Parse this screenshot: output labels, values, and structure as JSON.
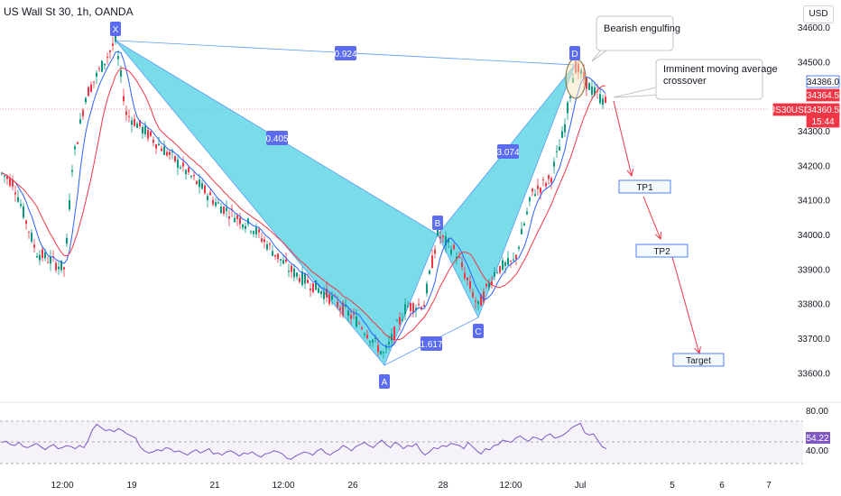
{
  "header": {
    "title": "US Wall St 30, 1h, OANDA",
    "currency": "USD"
  },
  "chart_data": {
    "type": "candlestick",
    "price_axis": {
      "ticks": [
        "34600.0",
        "34500.0",
        "34300.0",
        "34200.0",
        "34100.0",
        "34000.0",
        "33900.0",
        "33800.0",
        "33700.0",
        "33600.0"
      ],
      "range": [
        33560,
        34630
      ]
    },
    "time_axis": {
      "ticks": [
        "12:00",
        "19",
        "21",
        "12:00",
        "26",
        "28",
        "12:00",
        "Jul",
        "5",
        "6",
        "7"
      ]
    },
    "price_tags": [
      {
        "label": "34386.0",
        "value": 34386.0,
        "style": "outline-blue"
      },
      {
        "label": "34364.5",
        "value": 34364.5,
        "style": "red"
      },
      {
        "label": "US30USD",
        "value": 34360.5,
        "style": "red"
      },
      {
        "label": "34360.5",
        "value": 34360.5,
        "style": "red"
      },
      {
        "label": "15:44",
        "value": 34330,
        "style": "red"
      }
    ],
    "pattern": {
      "points": [
        {
          "label": "X",
          "price": 34555
        },
        {
          "label": "A",
          "price": 33640
        },
        {
          "label": "B",
          "price": 34000
        },
        {
          "label": "C",
          "price": 33780
        },
        {
          "label": "D",
          "price": 34490
        }
      ],
      "ratios": [
        "0.924",
        "0.405",
        "3.074",
        "1.617"
      ]
    },
    "targets": [
      {
        "label": "TP1",
        "price": 34145
      },
      {
        "label": "TP2",
        "price": 33975
      },
      {
        "label": "Target",
        "price": 33665
      }
    ],
    "annotations": [
      {
        "text": [
          "Bearish engulfing"
        ]
      },
      {
        "text": [
          "Imminent moving average",
          "crossover"
        ]
      }
    ],
    "rsi": {
      "levels": [
        "80.00",
        "40.00"
      ],
      "current": "54.22",
      "values": [
        60,
        61,
        58,
        57,
        60,
        56,
        55,
        57,
        59,
        56,
        53,
        56,
        58,
        54,
        55,
        57,
        56,
        54,
        57,
        55,
        62,
        72,
        77,
        74,
        71,
        72,
        70,
        73,
        71,
        68,
        66,
        64,
        56,
        52,
        50,
        51,
        53,
        52,
        55,
        54,
        51,
        52,
        50,
        48,
        51,
        53,
        50,
        52,
        54,
        49,
        50,
        48,
        51,
        52,
        50,
        47,
        50,
        49,
        51,
        48,
        46,
        49,
        50,
        52,
        51,
        49,
        45,
        44,
        47,
        49,
        51,
        50,
        48,
        52,
        54,
        50,
        48,
        51,
        53,
        57,
        55,
        52,
        56,
        58,
        60,
        57,
        55,
        59,
        62,
        58,
        55,
        60,
        58,
        54,
        57,
        56,
        59,
        52,
        48,
        51,
        55,
        54,
        57,
        56,
        59,
        58,
        57,
        54,
        60,
        56,
        52,
        49,
        54,
        53,
        57,
        58,
        62,
        61,
        60,
        64,
        66,
        63,
        61,
        65,
        64,
        62,
        66,
        68,
        64,
        65,
        67,
        70,
        74,
        76,
        78,
        69,
        67,
        68,
        62,
        56,
        54
      ]
    }
  }
}
